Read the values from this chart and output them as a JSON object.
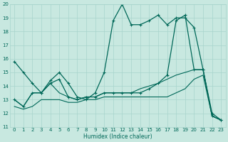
{
  "xlabel": "Humidex (Indice chaleur)",
  "xlim": [
    -0.5,
    23.5
  ],
  "ylim": [
    11,
    20
  ],
  "xticks": [
    0,
    1,
    2,
    3,
    4,
    5,
    6,
    7,
    8,
    9,
    10,
    11,
    12,
    13,
    14,
    15,
    16,
    17,
    18,
    19,
    20,
    21,
    22,
    23
  ],
  "yticks": [
    11,
    12,
    13,
    14,
    15,
    16,
    17,
    18,
    19,
    20
  ],
  "bg_color": "#c8e8e0",
  "grid_color": "#a8d4cc",
  "line_color": "#006858",
  "series": [
    {
      "y": [
        15.8,
        15.0,
        14.2,
        13.5,
        14.4,
        15.0,
        14.2,
        13.2,
        13.0,
        13.5,
        15.0,
        18.8,
        20.0,
        18.5,
        18.5,
        18.8,
        19.2,
        18.5,
        19.0,
        19.0,
        18.3,
        15.2,
        12.0,
        11.5
      ],
      "marker": true,
      "linewidth": 0.9
    },
    {
      "y": [
        13.0,
        12.5,
        13.5,
        13.5,
        14.2,
        14.5,
        13.2,
        13.0,
        13.2,
        13.2,
        13.5,
        13.5,
        13.5,
        13.5,
        13.5,
        13.8,
        14.2,
        14.8,
        18.8,
        19.2,
        15.2,
        15.2,
        11.8,
        11.5
      ],
      "marker": true,
      "linewidth": 0.9
    },
    {
      "y": [
        13.0,
        12.5,
        13.5,
        13.5,
        14.2,
        13.5,
        13.2,
        13.0,
        13.2,
        13.2,
        13.5,
        13.5,
        13.5,
        13.5,
        13.8,
        14.0,
        14.2,
        14.5,
        14.8,
        15.0,
        15.2,
        15.2,
        11.8,
        11.5
      ],
      "marker": false,
      "linewidth": 0.8
    },
    {
      "y": [
        12.5,
        12.3,
        12.5,
        13.0,
        13.0,
        13.0,
        12.8,
        12.8,
        13.0,
        13.0,
        13.2,
        13.2,
        13.2,
        13.2,
        13.2,
        13.2,
        13.2,
        13.2,
        13.5,
        13.8,
        14.5,
        14.8,
        11.8,
        11.5
      ],
      "marker": false,
      "linewidth": 0.8
    }
  ]
}
